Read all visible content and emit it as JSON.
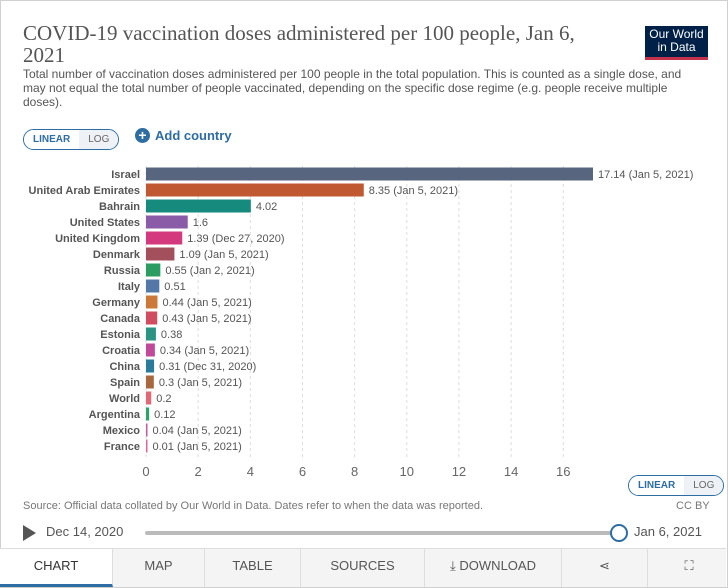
{
  "header": {
    "title": "COVID-19 vaccination doses administered per 100 people, Jan 6, 2021",
    "logo_line1": "Our World",
    "logo_line2": "in Data",
    "subtitle": "Total number of vaccination doses administered per 100 people in the total population. This is counted as a single dose, and may not equal the total number of people vaccinated, depending on the specific dose regime (e.g. people receive multiple doses)."
  },
  "controls": {
    "linear_label": "LINEAR",
    "log_label": "LOG",
    "add_country_label": "Add country"
  },
  "chart_data": {
    "type": "bar",
    "orientation": "horizontal",
    "categories": [
      "Israel",
      "United Arab Emirates",
      "Bahrain",
      "United States",
      "United Kingdom",
      "Denmark",
      "Russia",
      "Italy",
      "Germany",
      "Canada",
      "Estonia",
      "Croatia",
      "China",
      "Spain",
      "World",
      "Argentina",
      "Mexico",
      "France"
    ],
    "values": [
      17.14,
      8.35,
      4.02,
      1.6,
      1.39,
      1.09,
      0.55,
      0.51,
      0.44,
      0.43,
      0.38,
      0.34,
      0.31,
      0.3,
      0.2,
      0.12,
      0.04,
      0.01
    ],
    "labels": [
      "17.14 (Jan 5, 2021)",
      "8.35 (Jan 5, 2021)",
      "4.02",
      "1.6",
      "1.39 (Dec 27, 2020)",
      "1.09 (Jan 5, 2021)",
      "0.55 (Jan 2, 2021)",
      "0.51",
      "0.44 (Jan 5, 2021)",
      "0.43 (Jan 5, 2021)",
      "0.38",
      "0.34 (Jan 5, 2021)",
      "0.31 (Dec 31, 2020)",
      "0.3 (Jan 5, 2021)",
      "0.2",
      "0.12",
      "0.04 (Jan 5, 2021)",
      "0.01 (Jan 5, 2021)"
    ],
    "colors": [
      "#58657e",
      "#c05831",
      "#178a7e",
      "#8a5ba7",
      "#d3397c",
      "#a4505c",
      "#2c9c61",
      "#5378a8",
      "#cc7838",
      "#d04d5f",
      "#2a9382",
      "#c2489a",
      "#2a7b9b",
      "#a8673d",
      "#e36875",
      "#2ba46a",
      "#be5ea1",
      "#d86a9c"
    ],
    "xlim": [
      0,
      17.14
    ],
    "xticks": [
      0,
      2,
      4,
      6,
      8,
      10,
      12,
      14,
      16
    ],
    "grid": "vertical dashed"
  },
  "footer": {
    "source": "Source: Official data collated by Our World in Data. Dates refer to when the data was reported.",
    "license": "CC BY",
    "timeline_start": "Dec 14, 2020",
    "timeline_end": "Jan 6, 2021"
  },
  "tabs": [
    "CHART",
    "MAP",
    "TABLE",
    "SOURCES",
    "DOWNLOAD"
  ]
}
